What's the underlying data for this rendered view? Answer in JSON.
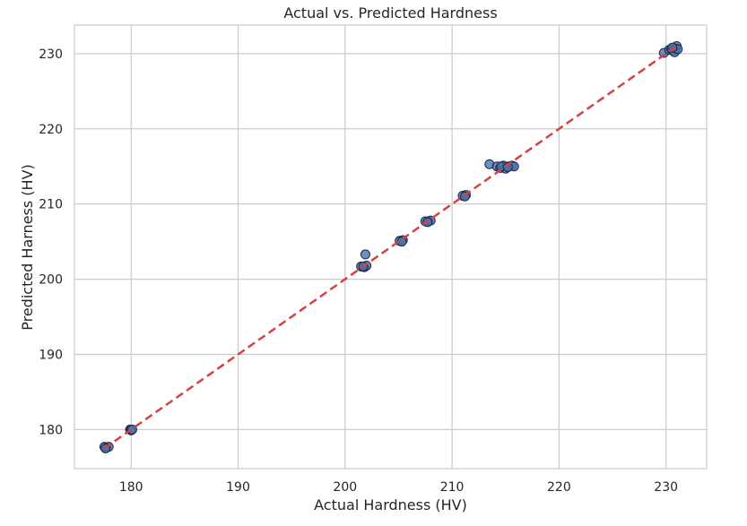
{
  "chart_data": {
    "type": "scatter",
    "title": "Actual vs. Predicted Hardness",
    "xlabel": "Actual Hardness (HV)",
    "ylabel": "Predicted Harness (HV)",
    "xlim": [
      174.7,
      233.8
    ],
    "ylim": [
      174.8,
      233.8
    ],
    "xticks": [
      180,
      190,
      200,
      210,
      220,
      230
    ],
    "yticks": [
      180,
      190,
      200,
      210,
      220,
      230
    ],
    "grid": true,
    "colors": {
      "point_fill": "#4c72b0",
      "point_edge": "#1a2a44",
      "reference_line": "#d64242",
      "grid": "#cccccc",
      "frame": "#cccccc"
    },
    "points": [
      {
        "x": 177.5,
        "y": 177.7
      },
      {
        "x": 177.7,
        "y": 177.6
      },
      {
        "x": 177.9,
        "y": 177.7
      },
      {
        "x": 177.6,
        "y": 177.5
      },
      {
        "x": 179.9,
        "y": 180.0
      },
      {
        "x": 180.0,
        "y": 179.9
      },
      {
        "x": 180.1,
        "y": 180.0
      },
      {
        "x": 201.5,
        "y": 201.7
      },
      {
        "x": 201.8,
        "y": 201.6
      },
      {
        "x": 202.0,
        "y": 201.8
      },
      {
        "x": 201.9,
        "y": 203.3
      },
      {
        "x": 201.7,
        "y": 201.7
      },
      {
        "x": 205.1,
        "y": 205.1
      },
      {
        "x": 205.4,
        "y": 205.2
      },
      {
        "x": 205.3,
        "y": 205.0
      },
      {
        "x": 207.5,
        "y": 207.7
      },
      {
        "x": 207.8,
        "y": 207.7
      },
      {
        "x": 208.0,
        "y": 207.8
      },
      {
        "x": 207.7,
        "y": 207.6
      },
      {
        "x": 211.0,
        "y": 211.1
      },
      {
        "x": 211.3,
        "y": 211.2
      },
      {
        "x": 211.2,
        "y": 211.0
      },
      {
        "x": 213.5,
        "y": 215.3
      },
      {
        "x": 214.2,
        "y": 215.0
      },
      {
        "x": 214.5,
        "y": 214.8
      },
      {
        "x": 214.8,
        "y": 215.1
      },
      {
        "x": 215.0,
        "y": 214.7
      },
      {
        "x": 215.3,
        "y": 215.0
      },
      {
        "x": 215.6,
        "y": 215.1
      },
      {
        "x": 215.8,
        "y": 215.0
      },
      {
        "x": 214.6,
        "y": 215.0
      },
      {
        "x": 215.2,
        "y": 214.9
      },
      {
        "x": 229.8,
        "y": 230.1
      },
      {
        "x": 230.3,
        "y": 230.5
      },
      {
        "x": 230.5,
        "y": 230.6
      },
      {
        "x": 230.7,
        "y": 230.4
      },
      {
        "x": 230.9,
        "y": 230.7
      },
      {
        "x": 231.0,
        "y": 231.0
      },
      {
        "x": 230.8,
        "y": 230.2
      },
      {
        "x": 231.1,
        "y": 230.6
      },
      {
        "x": 230.6,
        "y": 230.8
      }
    ],
    "reference_line": {
      "from": [
        177.5,
        177.5
      ],
      "to": [
        231.1,
        231.1
      ]
    }
  }
}
